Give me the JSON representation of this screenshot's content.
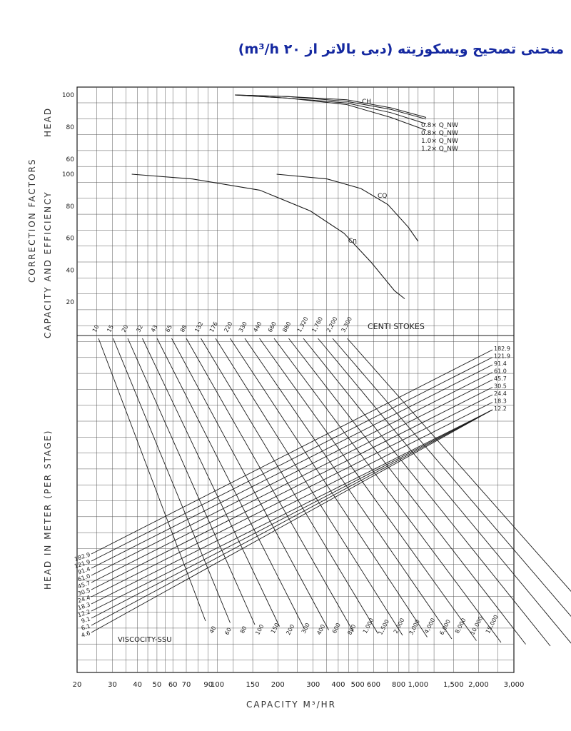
{
  "page_title": "منحنی تصحیح ویسکوزیته (دبی بالاتر از ۲۰ m³/h)",
  "colors": {
    "title": "#1428a0",
    "ink": "#1a1a1a",
    "grid": "#555555"
  },
  "labels": {
    "head": "HEAD",
    "correction_factors": "CORRECTION FACTORS",
    "capacity_efficiency": "CAPACITY AND EFFICIENCY",
    "head_in_meter": "HEAD IN METER (PER STAGE)",
    "centistokes": "CENTI STOKES",
    "viscosity_ssu": "VISCOCITY-SSU",
    "xlabel": "CAPACITY M³/HR"
  },
  "chart_data": [
    {
      "type": "line",
      "title": "",
      "panel": "head-correction",
      "ylabel": "HEAD",
      "ylim": [
        60,
        100
      ],
      "yticks": [
        "100",
        "80",
        "60"
      ],
      "series": [
        {
          "name": "C_H",
          "curve_labels": [
            "0.8× Q_NW",
            "0.8× Q_NW",
            "1.0× Q_NW",
            "1.2× Q_NW"
          ],
          "x_frac": [
            0.27,
            0.45,
            0.65,
            0.8,
            0.92
          ],
          "values_by_capacity": [
            [
              100,
              100,
              100,
              100,
              100
            ],
            [
              100,
              99,
              97,
              92,
              86
            ],
            [
              100,
              99,
              96,
              91,
              85
            ],
            [
              100,
              98,
              95,
              89,
              82
            ],
            [
              100,
              98,
              94,
              86,
              78
            ]
          ]
        }
      ],
      "curve_labels": [
        "0.8× Q_NW",
        "0.8× Q_NW",
        "1.0× Q_NW",
        "1.2× Q_NW"
      ],
      "series_label": "CH"
    },
    {
      "type": "line",
      "title": "",
      "panel": "capacity-efficiency-correction",
      "ylabel": "CAPACITY AND EFFICIENCY",
      "ylim": [
        20,
        100
      ],
      "yticks": [
        "100",
        "80",
        "60",
        "40",
        "20"
      ],
      "series": [
        {
          "name": "CQ",
          "points": [
            [
              0.55,
              100
            ],
            [
              0.7,
              97
            ],
            [
              0.8,
              91
            ],
            [
              0.88,
              81
            ],
            [
              0.94,
              67
            ],
            [
              0.97,
              58
            ]
          ]
        },
        {
          "name": "Cη",
          "points": [
            [
              0.12,
              100
            ],
            [
              0.3,
              97
            ],
            [
              0.5,
              90
            ],
            [
              0.65,
              77
            ],
            [
              0.75,
              63
            ],
            [
              0.83,
              45
            ],
            [
              0.9,
              27
            ],
            [
              0.93,
              22
            ]
          ]
        }
      ]
    },
    {
      "type": "line",
      "title": "",
      "panel": "nomogram",
      "xlabel": "CAPACITY M³/HR",
      "ylabel": "HEAD IN METER (PER STAGE)",
      "xscale": "log",
      "xlim": [
        20,
        3000
      ],
      "xticks": [
        "20",
        "30",
        "40",
        "50",
        "60",
        "70",
        "90",
        "100",
        "150",
        "200",
        "300",
        "400",
        "500",
        "600",
        "800",
        "1,000",
        "1,500",
        "2,000",
        "3,000"
      ],
      "head_lines_m": [
        "182.9",
        "121.9",
        "91.4",
        "61.0",
        "45.7",
        "30.5",
        "24.4",
        "18.3",
        "12.2",
        "9.1",
        "6.1",
        "4.6"
      ],
      "head_lines_right_m": [
        "182.9",
        "121.9",
        "91.4",
        "61.0",
        "45.7",
        "30.5",
        "24.4",
        "18.3",
        "12.2"
      ],
      "head_lines_left_labels": [
        "182.9",
        "121.9",
        "91.4",
        "61.0",
        "45.7",
        "30.5",
        "24.4",
        "18.3",
        "12.2",
        "9.1",
        "6.1",
        "4.6"
      ],
      "viscosity_centistokes": [
        "10",
        "15",
        "20",
        "32",
        "43",
        "65",
        "88",
        "132",
        "176",
        "220",
        "330",
        "440",
        "660",
        "880",
        "1,320",
        "1,760",
        "2,200",
        "3,300"
      ],
      "viscosity_ssu": [
        "40",
        "60",
        "80",
        "100",
        "150",
        "200",
        "300",
        "400",
        "600",
        "800",
        "1,000",
        "1,500",
        "2,000",
        "3,000",
        "4,000",
        "6,000",
        "8,000",
        "10,000",
        "15,000"
      ]
    }
  ]
}
